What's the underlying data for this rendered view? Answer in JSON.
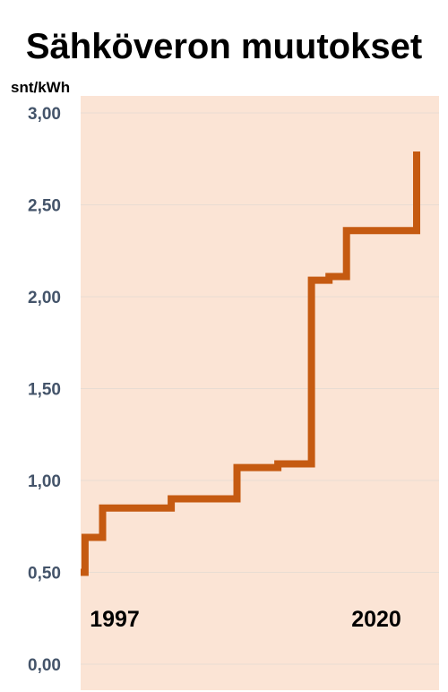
{
  "chart_data": {
    "type": "line",
    "title": "Sähköveron muutokset",
    "ylabel": "snt/kWh",
    "xlabel": "",
    "x_start_label": "1997",
    "x_end_label": "2020",
    "xlim": [
      1997,
      2020
    ],
    "ylim": [
      0,
      3
    ],
    "yticks": [
      "0,00",
      "0,50",
      "1,00",
      "1,50",
      "2,00",
      "2,50",
      "3,00"
    ],
    "ytick_values": [
      0,
      0.5,
      1.0,
      1.5,
      2.0,
      2.5,
      3.0
    ],
    "grid": true,
    "step": true,
    "series": [
      {
        "x": [
          1997,
          1997.3,
          1998.5,
          2003.2,
          2007.7,
          2010.5,
          2012.8,
          2014.0,
          2015.2,
          2020
        ],
        "values": [
          0.5,
          0.69,
          0.85,
          0.9,
          1.07,
          1.09,
          2.09,
          2.11,
          2.36,
          2.79
        ]
      }
    ],
    "colors": {
      "line": "#C55A11",
      "plot_background": "#FBE4D5",
      "grid": "#E8DCD3",
      "tick_label": "#44546A"
    }
  }
}
